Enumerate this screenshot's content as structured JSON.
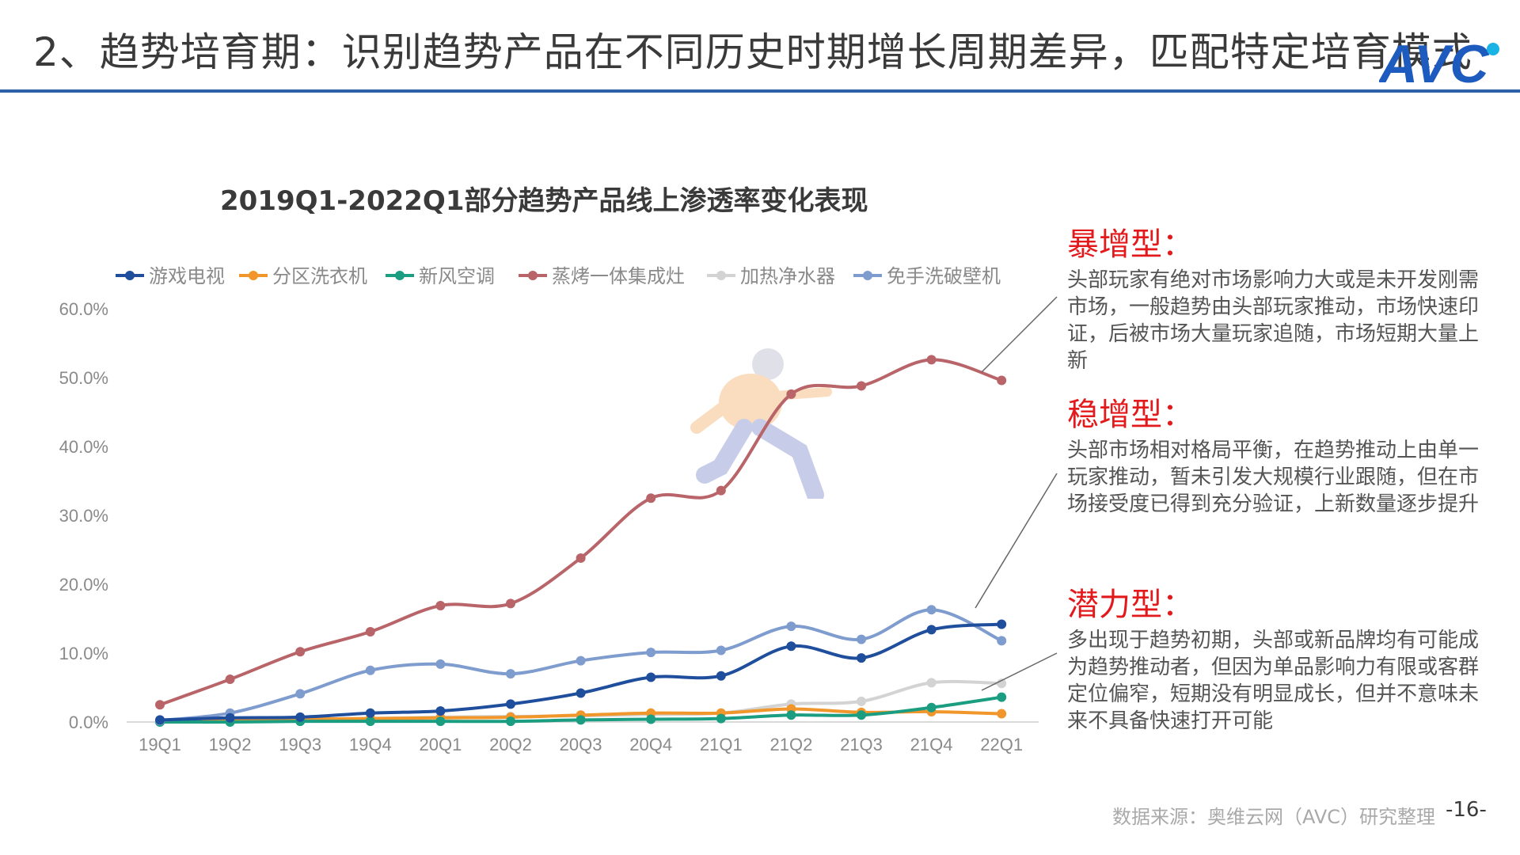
{
  "header": {
    "title": "2、趋势培育期：识别趋势产品在不同历史时期增长周期差异，匹配特定培育模式",
    "logo_text": "AVC"
  },
  "chart_data": {
    "type": "line",
    "title": "2019Q1-2022Q1部分趋势产品线上渗透率变化表现",
    "categories": [
      "19Q1",
      "19Q2",
      "19Q3",
      "19Q4",
      "20Q1",
      "20Q2",
      "20Q3",
      "20Q4",
      "21Q1",
      "21Q2",
      "21Q3",
      "21Q4",
      "22Q1"
    ],
    "y_ticks": [
      "0.0%",
      "10.0%",
      "20.0%",
      "30.0%",
      "40.0%",
      "50.0%",
      "60.0%"
    ],
    "ylim": [
      0,
      60
    ],
    "legend_position": "top",
    "grid": false,
    "series": [
      {
        "name": "游戏电视",
        "color": "#1f4e9c",
        "values": [
          0.3,
          0.6,
          0.7,
          1.3,
          1.6,
          2.6,
          4.2,
          6.5,
          6.7,
          11.0,
          9.3,
          13.4,
          14.2
        ]
      },
      {
        "name": "分区洗衣机",
        "color": "#f0962a",
        "values": [
          0.1,
          0.3,
          0.4,
          0.5,
          0.6,
          0.7,
          1.0,
          1.3,
          1.3,
          1.9,
          1.4,
          1.5,
          1.2
        ]
      },
      {
        "name": "新风空调",
        "color": "#1a9d80",
        "values": [
          0.0,
          0.0,
          0.1,
          0.1,
          0.1,
          0.1,
          0.3,
          0.4,
          0.5,
          1.0,
          1.0,
          2.1,
          3.6
        ]
      },
      {
        "name": "蒸烤一体集成灶",
        "color": "#b86469",
        "values": [
          2.5,
          6.2,
          10.2,
          13.1,
          16.9,
          17.2,
          23.8,
          32.5,
          33.6,
          47.6,
          48.8,
          52.6,
          49.6
        ]
      },
      {
        "name": "加热净水器",
        "color": "#d3d3d3",
        "values": [
          0.1,
          0.3,
          0.4,
          0.5,
          0.7,
          0.8,
          0.9,
          1.1,
          1.3,
          2.6,
          3.0,
          5.7,
          5.6
        ]
      },
      {
        "name": "免手洗破壁机",
        "color": "#7f9ccf",
        "values": [
          0.2,
          1.3,
          4.1,
          7.5,
          8.4,
          7.0,
          8.9,
          10.1,
          10.4,
          13.9,
          12.0,
          16.3,
          11.8
        ]
      }
    ]
  },
  "annotations": [
    {
      "heading": "暴增型：",
      "body": "头部玩家有绝对市场影响力大或是未开发刚需市场，一般趋势由头部玩家推动，市场快速印证，后被市场大量玩家追随，市场短期大量上新"
    },
    {
      "heading": "稳增型：",
      "body": "头部市场相对格局平衡，在趋势推动上由单一玩家推动，暂未引发大规模行业跟随，但在市场接受度已得到充分验证，上新数量逐步提升"
    },
    {
      "heading": "潜力型：",
      "body": "多出现于趋势初期，头部或新品牌均有可能成为趋势推动者，但因为单品影响力有限或客群定位偏窄，短期没有明显成长，但并不意味未来不具备快速打开可能"
    }
  ],
  "footer": {
    "source": "数据来源：奥维云网（AVC）研究整理",
    "page": "-16-"
  }
}
